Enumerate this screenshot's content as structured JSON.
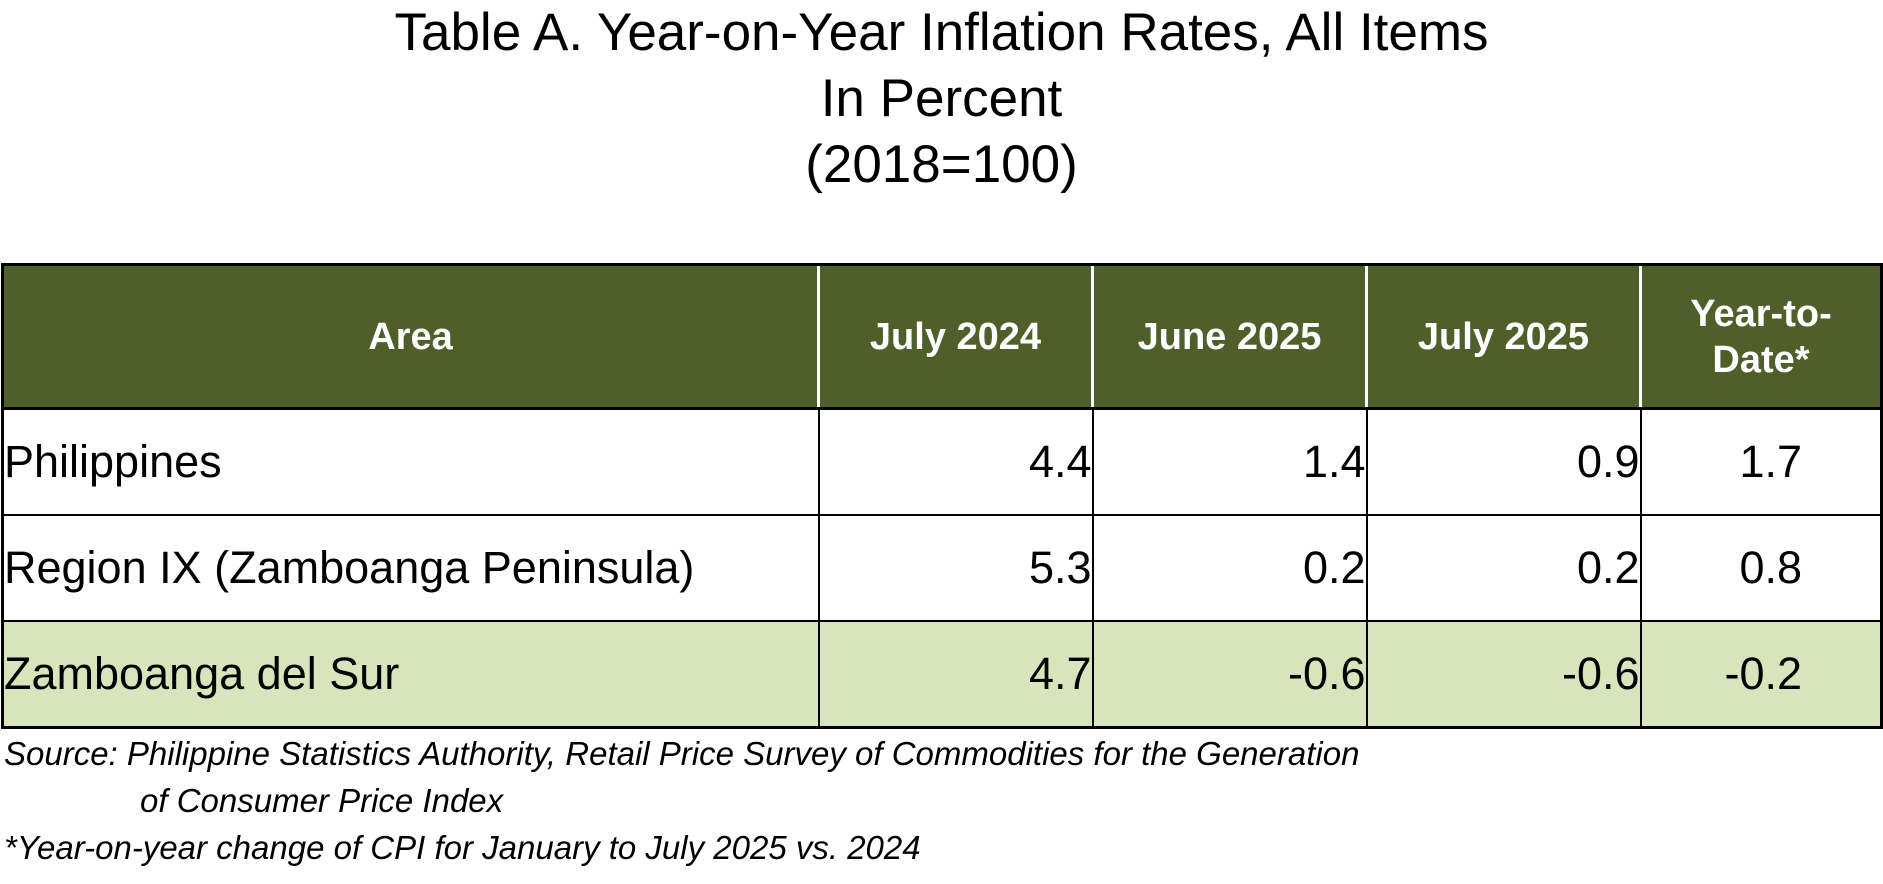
{
  "title": {
    "line1": "Table A.  Year-on-Year Inflation Rates, All Items",
    "line2": "In Percent",
    "line3": "(2018=100)"
  },
  "table": {
    "columns": [
      "Area",
      "July 2024",
      "June 2025",
      "July 2025",
      "Year-to-\nDate*"
    ],
    "header_ytd_line1": "Year-to-",
    "header_ytd_line2": "Date*",
    "rows": [
      {
        "area": "Philippines",
        "values": [
          "4.4",
          "1.4",
          "0.9",
          "1.7"
        ]
      },
      {
        "area": "Region IX (Zamboanga Peninsula)",
        "values": [
          "5.3",
          "0.2",
          "0.2",
          "0.8"
        ]
      },
      {
        "area": "Zamboanga del Sur",
        "values": [
          "4.7",
          "-0.6",
          "-0.6",
          "-0.2"
        ]
      }
    ]
  },
  "notes": {
    "source_line1": "Source: Philippine Statistics Authority, Retail Price Survey of Commodities for the Generation",
    "source_line2": "of Consumer Price Index",
    "footnote": "*Year-on-year change of CPI for January to July 2025 vs. 2024"
  },
  "colors": {
    "header_bg": "#4f5f2a",
    "highlight_row_bg": "#d7e4bc"
  }
}
